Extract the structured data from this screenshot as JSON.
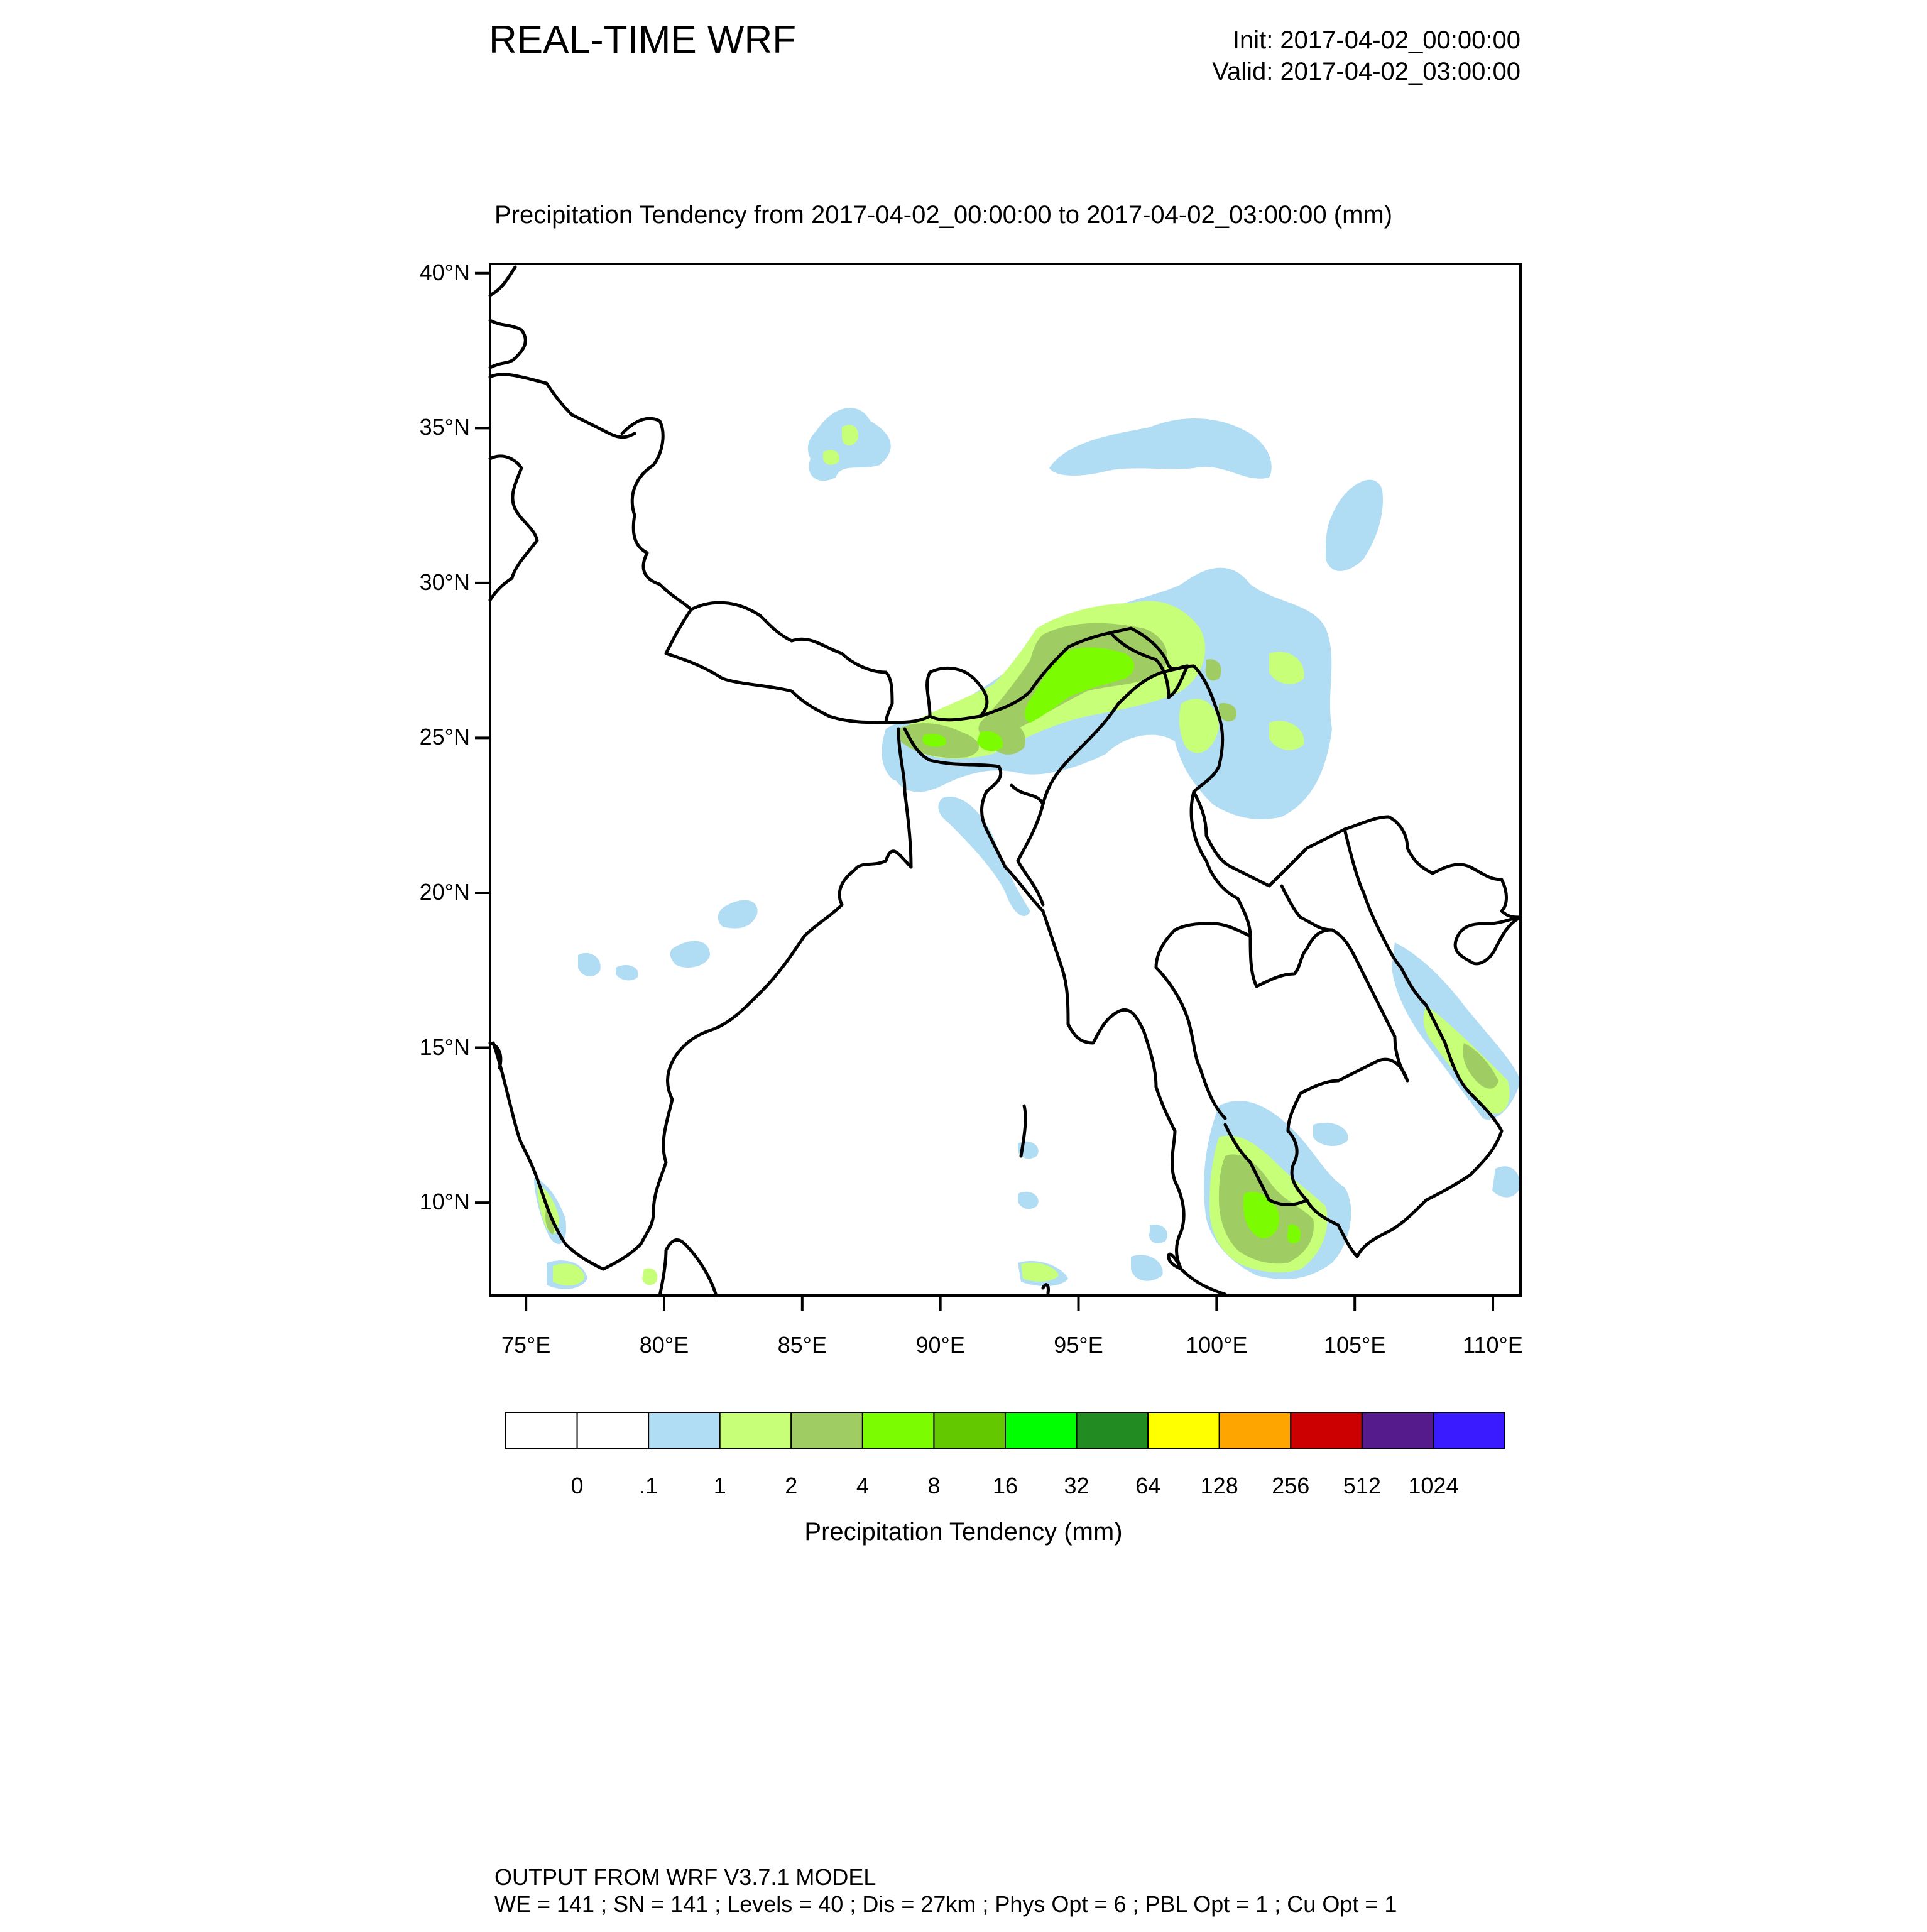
{
  "header": {
    "title": "REAL-TIME WRF",
    "init": "Init: 2017-04-02_00:00:00",
    "valid": "Valid: 2017-04-02_03:00:00"
  },
  "map": {
    "subtitle": "Precipitation Tendency from 2017-04-02_00:00:00 to 2017-04-02_03:00:00   (mm)",
    "lat_labels": [
      "40°N",
      "35°N",
      "30°N",
      "25°N",
      "20°N",
      "15°N",
      "10°N"
    ],
    "lon_labels": [
      "75°E",
      "80°E",
      "85°E",
      "90°E",
      "95°E",
      "100°E",
      "105°E",
      "110°E"
    ],
    "lat_values": [
      40,
      35,
      30,
      25,
      20,
      15,
      10
    ],
    "lon_values": [
      75,
      80,
      85,
      90,
      95,
      100,
      105,
      110
    ],
    "region": {
      "lon_range": [
        73.7,
        111
      ],
      "lat_range": [
        7.0,
        40.3
      ]
    }
  },
  "colorbar": {
    "title": "Precipitation Tendency  (mm)",
    "levels": [
      "0",
      ".1",
      "1",
      "2",
      "4",
      "8",
      "16",
      "32",
      "64",
      "128",
      "256",
      "512",
      "1024"
    ],
    "colors": [
      "#ffffff",
      "#ffffff",
      "#b0dcf4",
      "#c8ff78",
      "#a0cc64",
      "#7cfc00",
      "#64c800",
      "#00ff00",
      "#228b22",
      "#ffff00",
      "#ffa500",
      "#cc0000",
      "#551a8b",
      "#3a1aff"
    ]
  },
  "footer": {
    "line1": "OUTPUT FROM WRF V3.7.1 MODEL",
    "line2": "WE = 141 ; SN = 141 ; Levels = 40 ; Dis = 27km ; Phys Opt = 6 ; PBL Opt = 1 ; Cu Opt = 1"
  }
}
